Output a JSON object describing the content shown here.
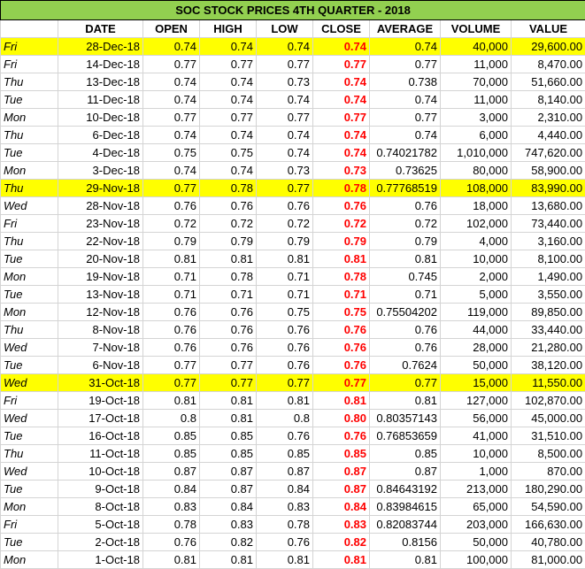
{
  "title": "SOC STOCK PRICES 4TH QUARTER - 2018",
  "headers": [
    "",
    "DATE",
    "OPEN",
    "HIGH",
    "LOW",
    "CLOSE",
    "AVERAGE",
    "VOLUME",
    "VALUE"
  ],
  "rows": [
    {
      "day": "Fri",
      "date": "28-Dec-18",
      "open": "0.74",
      "high": "0.74",
      "low": "0.74",
      "close": "0.74",
      "average": "0.74",
      "volume": "40,000",
      "value": "29,600.00",
      "highlight": true
    },
    {
      "day": "Fri",
      "date": "14-Dec-18",
      "open": "0.77",
      "high": "0.77",
      "low": "0.77",
      "close": "0.77",
      "average": "0.77",
      "volume": "11,000",
      "value": "8,470.00",
      "highlight": false
    },
    {
      "day": "Thu",
      "date": "13-Dec-18",
      "open": "0.74",
      "high": "0.74",
      "low": "0.73",
      "close": "0.74",
      "average": "0.738",
      "volume": "70,000",
      "value": "51,660.00",
      "highlight": false
    },
    {
      "day": "Tue",
      "date": "11-Dec-18",
      "open": "0.74",
      "high": "0.74",
      "low": "0.74",
      "close": "0.74",
      "average": "0.74",
      "volume": "11,000",
      "value": "8,140.00",
      "highlight": false
    },
    {
      "day": "Mon",
      "date": "10-Dec-18",
      "open": "0.77",
      "high": "0.77",
      "low": "0.77",
      "close": "0.77",
      "average": "0.77",
      "volume": "3,000",
      "value": "2,310.00",
      "highlight": false
    },
    {
      "day": "Thu",
      "date": "6-Dec-18",
      "open": "0.74",
      "high": "0.74",
      "low": "0.74",
      "close": "0.74",
      "average": "0.74",
      "volume": "6,000",
      "value": "4,440.00",
      "highlight": false
    },
    {
      "day": "Tue",
      "date": "4-Dec-18",
      "open": "0.75",
      "high": "0.75",
      "low": "0.74",
      "close": "0.74",
      "average": "0.74021782",
      "volume": "1,010,000",
      "value": "747,620.00",
      "highlight": false
    },
    {
      "day": "Mon",
      "date": "3-Dec-18",
      "open": "0.74",
      "high": "0.74",
      "low": "0.73",
      "close": "0.73",
      "average": "0.73625",
      "volume": "80,000",
      "value": "58,900.00",
      "highlight": false
    },
    {
      "day": "Thu",
      "date": "29-Nov-18",
      "open": "0.77",
      "high": "0.78",
      "low": "0.77",
      "close": "0.78",
      "average": "0.77768519",
      "volume": "108,000",
      "value": "83,990.00",
      "highlight": true
    },
    {
      "day": "Wed",
      "date": "28-Nov-18",
      "open": "0.76",
      "high": "0.76",
      "low": "0.76",
      "close": "0.76",
      "average": "0.76",
      "volume": "18,000",
      "value": "13,680.00",
      "highlight": false
    },
    {
      "day": "Fri",
      "date": "23-Nov-18",
      "open": "0.72",
      "high": "0.72",
      "low": "0.72",
      "close": "0.72",
      "average": "0.72",
      "volume": "102,000",
      "value": "73,440.00",
      "highlight": false
    },
    {
      "day": "Thu",
      "date": "22-Nov-18",
      "open": "0.79",
      "high": "0.79",
      "low": "0.79",
      "close": "0.79",
      "average": "0.79",
      "volume": "4,000",
      "value": "3,160.00",
      "highlight": false
    },
    {
      "day": "Tue",
      "date": "20-Nov-18",
      "open": "0.81",
      "high": "0.81",
      "low": "0.81",
      "close": "0.81",
      "average": "0.81",
      "volume": "10,000",
      "value": "8,100.00",
      "highlight": false
    },
    {
      "day": "Mon",
      "date": "19-Nov-18",
      "open": "0.71",
      "high": "0.78",
      "low": "0.71",
      "close": "0.78",
      "average": "0.745",
      "volume": "2,000",
      "value": "1,490.00",
      "highlight": false
    },
    {
      "day": "Tue",
      "date": "13-Nov-18",
      "open": "0.71",
      "high": "0.71",
      "low": "0.71",
      "close": "0.71",
      "average": "0.71",
      "volume": "5,000",
      "value": "3,550.00",
      "highlight": false
    },
    {
      "day": "Mon",
      "date": "12-Nov-18",
      "open": "0.76",
      "high": "0.76",
      "low": "0.75",
      "close": "0.75",
      "average": "0.75504202",
      "volume": "119,000",
      "value": "89,850.00",
      "highlight": false
    },
    {
      "day": "Thu",
      "date": "8-Nov-18",
      "open": "0.76",
      "high": "0.76",
      "low": "0.76",
      "close": "0.76",
      "average": "0.76",
      "volume": "44,000",
      "value": "33,440.00",
      "highlight": false
    },
    {
      "day": "Wed",
      "date": "7-Nov-18",
      "open": "0.76",
      "high": "0.76",
      "low": "0.76",
      "close": "0.76",
      "average": "0.76",
      "volume": "28,000",
      "value": "21,280.00",
      "highlight": false
    },
    {
      "day": "Tue",
      "date": "6-Nov-18",
      "open": "0.77",
      "high": "0.77",
      "low": "0.76",
      "close": "0.76",
      "average": "0.7624",
      "volume": "50,000",
      "value": "38,120.00",
      "highlight": false
    },
    {
      "day": "Wed",
      "date": "31-Oct-18",
      "open": "0.77",
      "high": "0.77",
      "low": "0.77",
      "close": "0.77",
      "average": "0.77",
      "volume": "15,000",
      "value": "11,550.00",
      "highlight": true
    },
    {
      "day": "Fri",
      "date": "19-Oct-18",
      "open": "0.81",
      "high": "0.81",
      "low": "0.81",
      "close": "0.81",
      "average": "0.81",
      "volume": "127,000",
      "value": "102,870.00",
      "highlight": false
    },
    {
      "day": "Wed",
      "date": "17-Oct-18",
      "open": "0.8",
      "high": "0.81",
      "low": "0.8",
      "close": "0.80",
      "average": "0.80357143",
      "volume": "56,000",
      "value": "45,000.00",
      "highlight": false
    },
    {
      "day": "Tue",
      "date": "16-Oct-18",
      "open": "0.85",
      "high": "0.85",
      "low": "0.76",
      "close": "0.76",
      "average": "0.76853659",
      "volume": "41,000",
      "value": "31,510.00",
      "highlight": false
    },
    {
      "day": "Thu",
      "date": "11-Oct-18",
      "open": "0.85",
      "high": "0.85",
      "low": "0.85",
      "close": "0.85",
      "average": "0.85",
      "volume": "10,000",
      "value": "8,500.00",
      "highlight": false
    },
    {
      "day": "Wed",
      "date": "10-Oct-18",
      "open": "0.87",
      "high": "0.87",
      "low": "0.87",
      "close": "0.87",
      "average": "0.87",
      "volume": "1,000",
      "value": "870.00",
      "highlight": false
    },
    {
      "day": "Tue",
      "date": "9-Oct-18",
      "open": "0.84",
      "high": "0.87",
      "low": "0.84",
      "close": "0.87",
      "average": "0.84643192",
      "volume": "213,000",
      "value": "180,290.00",
      "highlight": false
    },
    {
      "day": "Mon",
      "date": "8-Oct-18",
      "open": "0.83",
      "high": "0.84",
      "low": "0.83",
      "close": "0.84",
      "average": "0.83984615",
      "volume": "65,000",
      "value": "54,590.00",
      "highlight": false
    },
    {
      "day": "Fri",
      "date": "5-Oct-18",
      "open": "0.78",
      "high": "0.83",
      "low": "0.78",
      "close": "0.83",
      "average": "0.82083744",
      "volume": "203,000",
      "value": "166,630.00",
      "highlight": false
    },
    {
      "day": "Tue",
      "date": "2-Oct-18",
      "open": "0.76",
      "high": "0.82",
      "low": "0.76",
      "close": "0.82",
      "average": "0.8156",
      "volume": "50,000",
      "value": "40,780.00",
      "highlight": false
    },
    {
      "day": "Mon",
      "date": "1-Oct-18",
      "open": "0.81",
      "high": "0.81",
      "low": "0.81",
      "close": "0.81",
      "average": "0.81",
      "volume": "100,000",
      "value": "81,000.00",
      "highlight": false
    }
  ],
  "colors": {
    "title_bg": "#92d050",
    "highlight": "#ffff00",
    "close_text": "#ff0000"
  }
}
